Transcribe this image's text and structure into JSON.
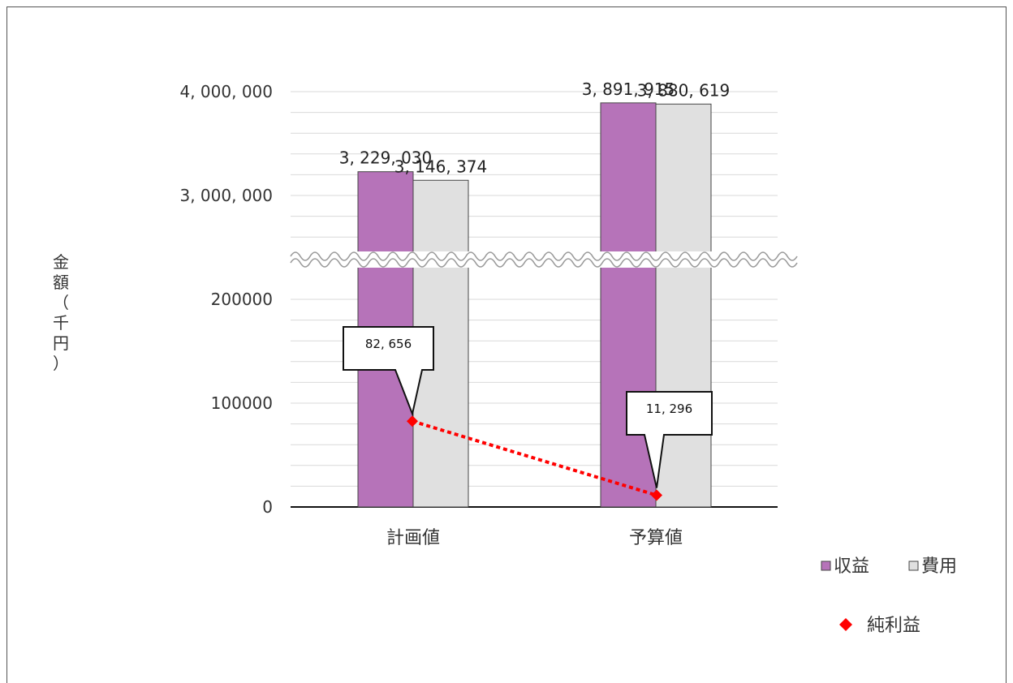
{
  "chart_data": {
    "type": "bar",
    "categories": [
      "計画値",
      "予算値"
    ],
    "ylabel": "金額（千円）",
    "series": [
      {
        "name": "収益",
        "values": [
          3229030,
          3891915
        ],
        "labels": [
          "3, 229, 030",
          "3, 891, 915"
        ],
        "color": "#b673b9"
      },
      {
        "name": "費用",
        "values": [
          3146374,
          3880619
        ],
        "labels": [
          "3, 146, 374",
          "3, 880, 619"
        ],
        "color": "#e0e0e0"
      },
      {
        "name": "純利益",
        "type": "line",
        "values": [
          82656,
          11296
        ],
        "labels": [
          "82, 656",
          "11, 296"
        ],
        "color": "#ff0000"
      }
    ],
    "axis_break": true,
    "lower_axis": {
      "range": [
        0,
        200000
      ],
      "ticks": [
        0,
        100000,
        200000
      ],
      "tick_labels": [
        "0",
        "100000",
        "200000"
      ]
    },
    "upper_axis": {
      "range": [
        3000000,
        4000000
      ],
      "ticks": [
        3000000,
        4000000
      ],
      "tick_labels": [
        "3, 000, 000",
        "4, 000, 000"
      ]
    },
    "grid": true,
    "legend_placement": "bottom-right"
  }
}
